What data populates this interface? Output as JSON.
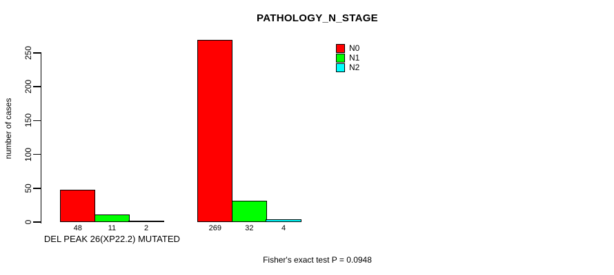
{
  "chart_data": {
    "type": "bar",
    "title": "PATHOLOGY_N_STAGE",
    "ylabel": "number of cases",
    "xlabel": "",
    "ylim": [
      0,
      250
    ],
    "yticks": [
      0,
      50,
      100,
      150,
      200,
      250
    ],
    "grid": false,
    "legend": {
      "position": "top-right",
      "entries": [
        {
          "label": "N0",
          "color": "#ff0000"
        },
        {
          "label": "N1",
          "color": "#00ff00"
        },
        {
          "label": "N2",
          "color": "#00ffff"
        }
      ]
    },
    "series": [
      {
        "name": "N0",
        "values": [
          48,
          269
        ]
      },
      {
        "name": "N1",
        "values": [
          11,
          32
        ]
      },
      {
        "name": "N2",
        "values": [
          2,
          4
        ]
      }
    ],
    "groups": [
      {
        "label": "DEL PEAK 26(XP22.2) MUTATED",
        "values": [
          48,
          11,
          2
        ]
      },
      {
        "label": "",
        "values": [
          269,
          32,
          4
        ]
      }
    ],
    "annotation": "Fisher's exact test P = 0.0948"
  }
}
